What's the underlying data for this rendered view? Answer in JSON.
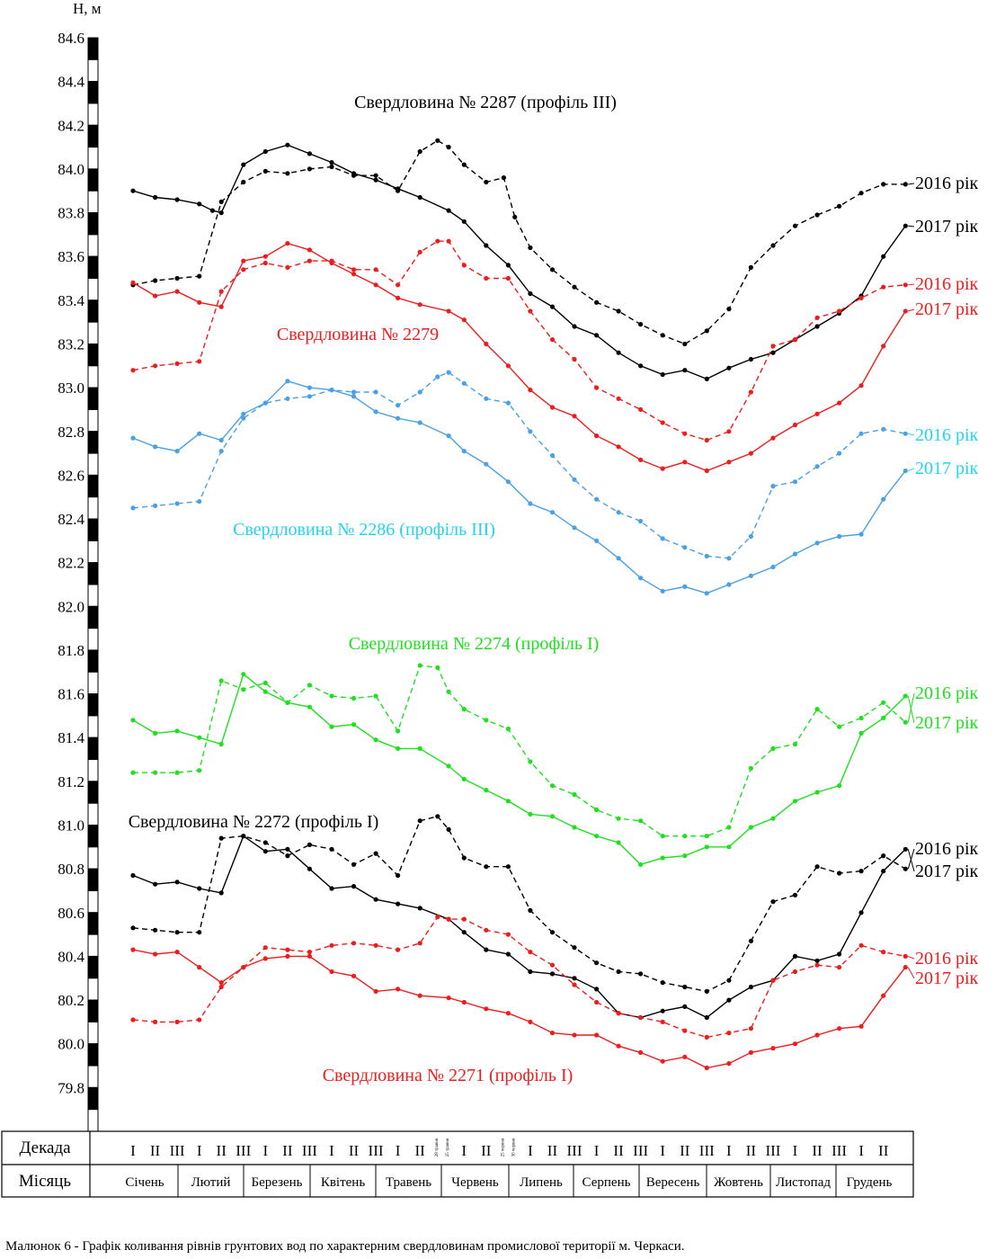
{
  "chart_data": {
    "type": "line",
    "ylabel": "Н, м",
    "ylim": [
      79.6,
      84.6
    ],
    "y_ticks": [
      "84.6",
      "84.4",
      "84.2",
      "84.0",
      "83.8",
      "83.6",
      "83.4",
      "83.2",
      "83.0",
      "82.8",
      "82.6",
      "82.4",
      "82.2",
      "82.0",
      "81.8",
      "81.6",
      "81.4",
      "81.2",
      "81.0",
      "80.8",
      "80.6",
      "80.4",
      "80.2",
      "80.0",
      "79.8"
    ],
    "table": {
      "row_labels": {
        "decade": "Декада",
        "month": "Місяць"
      },
      "decades": [
        "I",
        "II",
        "III",
        "I",
        "II",
        "III",
        "I",
        "II",
        "III",
        "I",
        "II",
        "III",
        "I",
        "II",
        "28 травня",
        "25 травня",
        "I",
        "II",
        "25 червня",
        "30 червня",
        "I",
        "II",
        "III",
        "I",
        "II",
        "III",
        "I",
        "II",
        "III",
        "I",
        "II",
        "III",
        "I",
        "II",
        "III",
        "I",
        "II"
      ],
      "months": [
        "Січень",
        "Лютий",
        "Березень",
        "Квітень",
        "Травень",
        "Червень",
        "Липень",
        "Серпень",
        "Вересень",
        "Жовтень",
        "Листопад",
        "Грудень"
      ]
    },
    "wells": [
      {
        "name": "Свердловина № 2287 (профіль III)",
        "color": "#000000"
      },
      {
        "name": "Свердловина № 2279",
        "color": "#ee1c1c"
      },
      {
        "name": "Свердловина № 2286 (профіль III)",
        "color": "#22d4ee"
      },
      {
        "name": "Свердловина № 2274 (профіль І)",
        "color": "#1ee01e"
      },
      {
        "name": "Свердловина № 2272 (профіль І)",
        "color": "#000000"
      },
      {
        "name": "Свердловина № 2271 (профіль І)",
        "color": "#ee1c1c"
      }
    ],
    "series": [
      {
        "well": 0,
        "year_label": "2016 рік",
        "style": "dashed",
        "color": "#000000",
        "label_color": "#000000",
        "x": [
          1,
          2,
          3,
          4,
          5,
          6,
          7,
          8,
          9,
          10,
          11,
          12,
          13,
          14,
          14.8,
          15.3,
          16,
          17,
          17.8,
          18.3,
          19,
          20,
          21,
          22,
          23,
          24,
          25,
          26,
          27,
          28,
          29,
          30,
          31,
          32,
          33,
          34,
          35,
          36
        ],
        "values": [
          83.47,
          83.49,
          83.5,
          83.51,
          83.85,
          83.94,
          83.99,
          83.98,
          84.0,
          84.01,
          83.97,
          83.97,
          83.9,
          84.08,
          84.13,
          84.1,
          84.02,
          83.94,
          83.96,
          83.78,
          83.64,
          83.54,
          83.46,
          83.39,
          83.35,
          83.29,
          83.24,
          83.2,
          83.26,
          83.36,
          83.55,
          83.65,
          83.74,
          83.79,
          83.83,
          83.89,
          83.93,
          83.93
        ]
      },
      {
        "well": 0,
        "year_label": "2017 рік",
        "style": "solid",
        "color": "#000000",
        "label_color": "#000000",
        "x": [
          1,
          2,
          3,
          4,
          4.6,
          5,
          6,
          7,
          8,
          9,
          10,
          11,
          12,
          13,
          14,
          15.3,
          16,
          17,
          18,
          19,
          20,
          21,
          22,
          23,
          24,
          25,
          26,
          27,
          28,
          29,
          30,
          31,
          32,
          33,
          34,
          35,
          36
        ],
        "values": [
          83.9,
          83.87,
          83.86,
          83.84,
          83.81,
          83.8,
          84.02,
          84.08,
          84.11,
          84.07,
          84.03,
          83.98,
          83.95,
          83.91,
          83.87,
          83.81,
          83.76,
          83.65,
          83.56,
          83.43,
          83.37,
          83.28,
          83.24,
          83.16,
          83.1,
          83.06,
          83.08,
          83.04,
          83.09,
          83.13,
          83.16,
          83.22,
          83.28,
          83.34,
          83.42,
          83.6,
          83.74
        ]
      },
      {
        "well": 1,
        "year_label": "2016 рік",
        "style": "dashed",
        "color": "#ee1c1c",
        "label_color": "#ee1c1c",
        "x": [
          1,
          2,
          3,
          4,
          5,
          6,
          7,
          8,
          9,
          10,
          11,
          12,
          13,
          14,
          14.8,
          15.3,
          16,
          17,
          18,
          19,
          20,
          21,
          22,
          23,
          24,
          25,
          26,
          27,
          28,
          29,
          30,
          31,
          32,
          33,
          34,
          35,
          36
        ],
        "values": [
          83.08,
          83.1,
          83.11,
          83.12,
          83.44,
          83.54,
          83.57,
          83.55,
          83.58,
          83.58,
          83.54,
          83.54,
          83.47,
          83.62,
          83.67,
          83.67,
          83.56,
          83.5,
          83.5,
          83.35,
          83.22,
          83.13,
          83.0,
          82.95,
          82.9,
          82.84,
          82.79,
          82.76,
          82.8,
          82.98,
          83.19,
          83.22,
          83.32,
          83.35,
          83.41,
          83.46,
          83.47
        ]
      },
      {
        "well": 1,
        "year_label": "2017 рік",
        "style": "solid",
        "color": "#ee1c1c",
        "label_color": "#ee1c1c",
        "x": [
          1,
          2,
          3,
          4,
          5,
          6,
          7,
          8,
          9,
          10,
          11,
          12,
          13,
          14,
          15.3,
          16,
          17,
          18,
          19,
          20,
          21,
          22,
          23,
          24,
          25,
          26,
          27,
          28,
          29,
          30,
          31,
          32,
          33,
          34,
          35,
          36
        ],
        "values": [
          83.48,
          83.42,
          83.44,
          83.39,
          83.37,
          83.58,
          83.6,
          83.66,
          83.63,
          83.57,
          83.52,
          83.47,
          83.41,
          83.38,
          83.35,
          83.31,
          83.2,
          83.1,
          82.99,
          82.91,
          82.87,
          82.78,
          82.73,
          82.67,
          82.63,
          82.66,
          82.62,
          82.66,
          82.7,
          82.77,
          82.83,
          82.88,
          82.93,
          83.01,
          83.19,
          83.35
        ]
      },
      {
        "well": 2,
        "year_label": "2016 рік",
        "style": "dashed",
        "color": "#4aa0e6",
        "label_color": "#22d4ee",
        "x": [
          1,
          2,
          3,
          4,
          5,
          6,
          7,
          8,
          9,
          10,
          11,
          12,
          13,
          14,
          14.8,
          15.3,
          16,
          17,
          18,
          19,
          20,
          21,
          22,
          23,
          24,
          25,
          26,
          27,
          28,
          29,
          30,
          31,
          32,
          33,
          34,
          35,
          36
        ],
        "values": [
          82.45,
          82.46,
          82.47,
          82.48,
          82.71,
          82.86,
          82.93,
          82.95,
          82.96,
          82.99,
          82.98,
          82.98,
          82.92,
          82.98,
          83.05,
          83.07,
          83.02,
          82.95,
          82.93,
          82.8,
          82.69,
          82.58,
          82.49,
          82.43,
          82.39,
          82.31,
          82.27,
          82.23,
          82.22,
          82.32,
          82.55,
          82.57,
          82.64,
          82.7,
          82.79,
          82.81,
          82.79
        ]
      },
      {
        "well": 2,
        "year_label": "2017 рік",
        "style": "solid",
        "color": "#4aa0e6",
        "label_color": "#22d4ee",
        "x": [
          1,
          2,
          3,
          4,
          5,
          6,
          7,
          8,
          9,
          10,
          11,
          12,
          13,
          14,
          15.3,
          16,
          17,
          18,
          19,
          20,
          21,
          22,
          23,
          24,
          25,
          26,
          27,
          28,
          29,
          30,
          31,
          32,
          33,
          34,
          35,
          36
        ],
        "values": [
          82.77,
          82.73,
          82.71,
          82.79,
          82.76,
          82.88,
          82.93,
          83.03,
          83.0,
          82.99,
          82.96,
          82.89,
          82.86,
          82.84,
          82.78,
          82.71,
          82.65,
          82.57,
          82.47,
          82.43,
          82.36,
          82.3,
          82.22,
          82.13,
          82.07,
          82.09,
          82.06,
          82.1,
          82.14,
          82.18,
          82.24,
          82.29,
          82.32,
          82.33,
          82.49,
          82.62
        ]
      },
      {
        "well": 3,
        "year_label": "2016 рік",
        "style": "dashed",
        "color": "#1ee01e",
        "label_color": "#1ee01e",
        "x": [
          1,
          2,
          3,
          4,
          5,
          6,
          7,
          8,
          9,
          10,
          11,
          12,
          13,
          14,
          14.8,
          15.3,
          16,
          17,
          18,
          19,
          20,
          21,
          22,
          23,
          24,
          25,
          26,
          27,
          28,
          29,
          30,
          31,
          32,
          33,
          34,
          35,
          36
        ],
        "values": [
          81.24,
          81.24,
          81.24,
          81.25,
          81.66,
          81.62,
          81.65,
          81.56,
          81.64,
          81.59,
          81.58,
          81.59,
          81.43,
          81.73,
          81.72,
          81.61,
          81.53,
          81.48,
          81.44,
          81.29,
          81.18,
          81.14,
          81.07,
          81.03,
          81.02,
          80.95,
          80.95,
          80.95,
          80.99,
          81.26,
          81.35,
          81.37,
          81.53,
          81.45,
          81.49,
          81.56,
          81.47
        ]
      },
      {
        "well": 3,
        "year_label": "2017 рік",
        "style": "solid",
        "color": "#1ee01e",
        "label_color": "#1ee01e",
        "x": [
          1,
          2,
          3,
          4,
          5,
          6,
          7,
          8,
          9,
          10,
          11,
          12,
          13,
          14,
          15.3,
          16,
          17,
          18,
          19,
          20,
          21,
          22,
          23,
          24,
          25,
          26,
          27,
          28,
          29,
          30,
          31,
          32,
          33,
          34,
          35,
          36
        ],
        "values": [
          81.48,
          81.42,
          81.43,
          81.4,
          81.37,
          81.69,
          81.61,
          81.56,
          81.54,
          81.45,
          81.46,
          81.39,
          81.35,
          81.35,
          81.27,
          81.21,
          81.16,
          81.11,
          81.05,
          81.04,
          80.99,
          80.95,
          80.92,
          80.82,
          80.85,
          80.86,
          80.9,
          80.9,
          80.99,
          81.03,
          81.11,
          81.15,
          81.18,
          81.42,
          81.49,
          81.59
        ]
      },
      {
        "well": 4,
        "year_label": "2016 рік",
        "style": "dashed",
        "color": "#000000",
        "label_color": "#000000",
        "x": [
          1,
          2,
          3,
          4,
          5,
          6,
          7,
          8,
          9,
          10,
          11,
          12,
          13,
          14,
          14.8,
          15.3,
          16,
          17,
          18,
          19,
          20,
          21,
          22,
          23,
          24,
          25,
          26,
          27,
          28,
          29,
          30,
          31,
          32,
          33,
          34,
          35,
          36
        ],
        "values": [
          80.53,
          80.52,
          80.51,
          80.51,
          80.94,
          80.95,
          80.92,
          80.86,
          80.91,
          80.89,
          80.82,
          80.87,
          80.77,
          81.02,
          81.04,
          80.98,
          80.85,
          80.81,
          80.81,
          80.61,
          80.51,
          80.44,
          80.37,
          80.33,
          80.32,
          80.28,
          80.26,
          80.24,
          80.29,
          80.47,
          80.65,
          80.68,
          80.81,
          80.78,
          80.79,
          80.86,
          80.8
        ]
      },
      {
        "well": 4,
        "year_label": "2017 рік",
        "style": "solid",
        "color": "#000000",
        "label_color": "#000000",
        "x": [
          1,
          2,
          3,
          4,
          5,
          6,
          7,
          8,
          9,
          10,
          11,
          12,
          13,
          14,
          15.3,
          16,
          17,
          18,
          19,
          20,
          21,
          22,
          23,
          24,
          25,
          26,
          27,
          28,
          29,
          30,
          31,
          32,
          33,
          34,
          35,
          36
        ],
        "values": [
          80.77,
          80.73,
          80.74,
          80.71,
          80.69,
          80.95,
          80.88,
          80.89,
          80.8,
          80.71,
          80.72,
          80.66,
          80.64,
          80.62,
          80.57,
          80.51,
          80.43,
          80.41,
          80.33,
          80.32,
          80.3,
          80.25,
          80.14,
          80.12,
          80.15,
          80.17,
          80.12,
          80.2,
          80.26,
          80.29,
          80.4,
          80.38,
          80.41,
          80.6,
          80.79,
          80.89
        ]
      },
      {
        "well": 5,
        "year_label": "2016 рік",
        "style": "dashed",
        "color": "#ee1c1c",
        "label_color": "#ee1c1c",
        "x": [
          1,
          2,
          3,
          4,
          5,
          6,
          7,
          8,
          9,
          10,
          11,
          12,
          13,
          14,
          14.8,
          15.3,
          16,
          17,
          18,
          19,
          20,
          21,
          22,
          23,
          24,
          25,
          26,
          27,
          28,
          29,
          30,
          31,
          32,
          33,
          34,
          35,
          36
        ],
        "values": [
          80.11,
          80.1,
          80.1,
          80.11,
          80.26,
          80.35,
          80.44,
          80.43,
          80.42,
          80.45,
          80.46,
          80.45,
          80.43,
          80.46,
          80.58,
          80.57,
          80.57,
          80.52,
          80.5,
          80.42,
          80.36,
          80.27,
          80.19,
          80.14,
          80.12,
          80.1,
          80.06,
          80.03,
          80.05,
          80.07,
          80.29,
          80.33,
          80.36,
          80.35,
          80.45,
          80.42,
          80.4
        ]
      },
      {
        "well": 5,
        "year_label": "2017 рік",
        "style": "solid",
        "color": "#ee1c1c",
        "label_color": "#ee1c1c",
        "x": [
          1,
          2,
          3,
          4,
          5,
          6,
          7,
          8,
          9,
          10,
          11,
          12,
          13,
          14,
          15.3,
          16,
          17,
          18,
          19,
          20,
          21,
          22,
          23,
          24,
          25,
          26,
          27,
          28,
          29,
          30,
          31,
          32,
          33,
          34,
          35,
          36
        ],
        "values": [
          80.43,
          80.41,
          80.42,
          80.35,
          80.28,
          80.35,
          80.39,
          80.4,
          80.4,
          80.33,
          80.31,
          80.24,
          80.25,
          80.22,
          80.21,
          80.19,
          80.16,
          80.14,
          80.1,
          80.05,
          80.04,
          80.04,
          79.99,
          79.96,
          79.92,
          79.94,
          79.89,
          79.91,
          79.96,
          79.98,
          80.0,
          80.04,
          80.07,
          80.08,
          80.22,
          80.35
        ]
      }
    ]
  },
  "caption": "Малюнок 6 - Графік коливання рівнів грунтових вод по характерним свердловинам промислової території м. Черкаси."
}
